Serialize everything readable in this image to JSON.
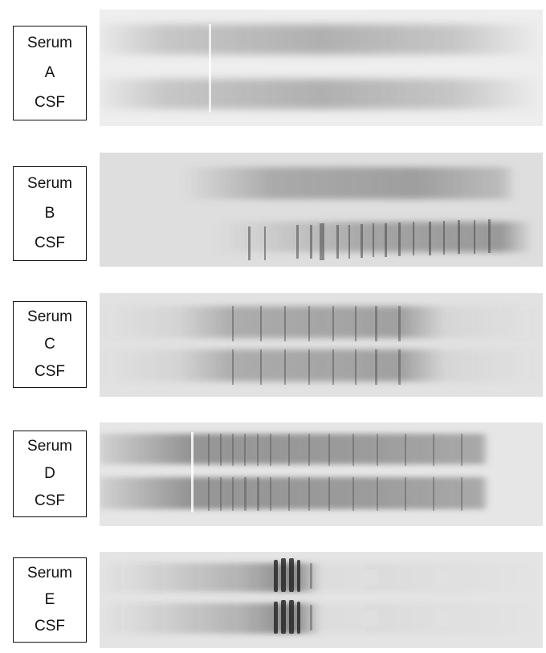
{
  "figure": {
    "panels": [
      {
        "id": "A",
        "top_label": "Serum",
        "letter": "A",
        "bottom_label": "CSF",
        "gel_color": "#eaeaea",
        "band_color": "#7d7d7d",
        "pattern": "diffuse"
      },
      {
        "id": "B",
        "top_label": "Serum",
        "letter": "B",
        "bottom_label": "CSF",
        "gel_color": "#dedede",
        "band_color": "#6a6a6a",
        "pattern": "csf-restricted-bands"
      },
      {
        "id": "C",
        "top_label": "Serum",
        "letter": "C",
        "bottom_label": "CSF",
        "gel_color": "#e2e2e2",
        "band_color": "#6a6a6a",
        "pattern": "identical-bands"
      },
      {
        "id": "D",
        "top_label": "Serum",
        "letter": "D",
        "bottom_label": "CSF",
        "gel_color": "#e6e6e6",
        "band_color": "#5e5e5e",
        "pattern": "identical-plus-extra"
      },
      {
        "id": "E",
        "top_label": "Serum",
        "letter": "E",
        "bottom_label": "CSF",
        "gel_color": "#e4e4e4",
        "band_color": "#3e3e3e",
        "pattern": "monoclonal"
      }
    ]
  }
}
